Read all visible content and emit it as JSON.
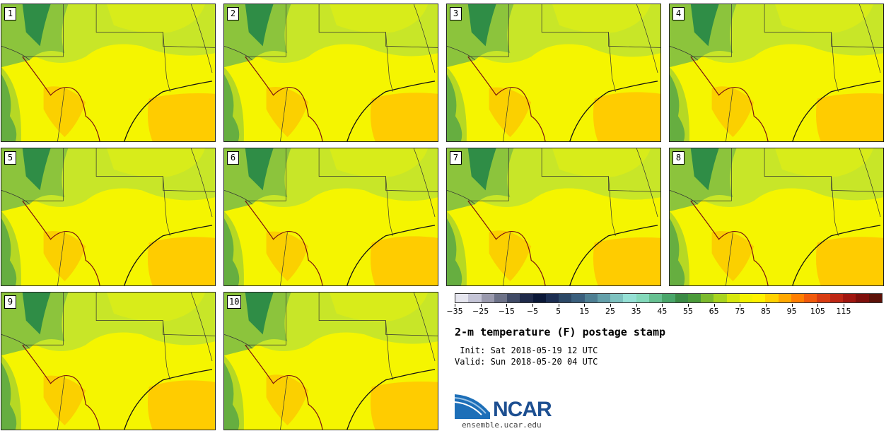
{
  "title": "2-m temperature (F) postage stamp",
  "init_line": " Init: Sat 2018-05-19 12 UTC",
  "valid_line": "Valid: Sun 2018-05-20 04 UTC",
  "logo_text": "NCAR",
  "logo_url": "ensemble.ucar.edu",
  "members": [
    "1",
    "2",
    "3",
    "4",
    "5",
    "6",
    "7",
    "8",
    "9",
    "10"
  ],
  "colorbar": {
    "tick_labels": [
      "−35",
      "−25",
      "−15",
      "−5",
      "5",
      "15",
      "25",
      "35",
      "45",
      "55",
      "65",
      "75",
      "85",
      "95",
      "105",
      "115"
    ],
    "colors": [
      "#e6e6ef",
      "#c4c4d6",
      "#9a9aae",
      "#6d7288",
      "#404a66",
      "#1f2a4a",
      "#0b1838",
      "#1c2e52",
      "#2c4866",
      "#3a5f7d",
      "#4e7f93",
      "#64a0aa",
      "#7ec2c0",
      "#95e0d5",
      "#84d9bb",
      "#66c091",
      "#4aa66a",
      "#3b8a45",
      "#4b9a3a",
      "#7cba2e",
      "#a8d41f",
      "#d6e80e",
      "#f3f300",
      "#fff200",
      "#ffd200",
      "#ffa800",
      "#ff7e00",
      "#f15a0c",
      "#d83c12",
      "#bd2614",
      "#a01610",
      "#7e0f0c",
      "#5c1209"
    ]
  },
  "map_colors": {
    "cool": "#2f8d46",
    "mild": "#8cc43c",
    "warm_green": "#c8e628",
    "yellow": "#f5f500",
    "orange": "#ffb000",
    "gulf": "#ffcc00"
  }
}
